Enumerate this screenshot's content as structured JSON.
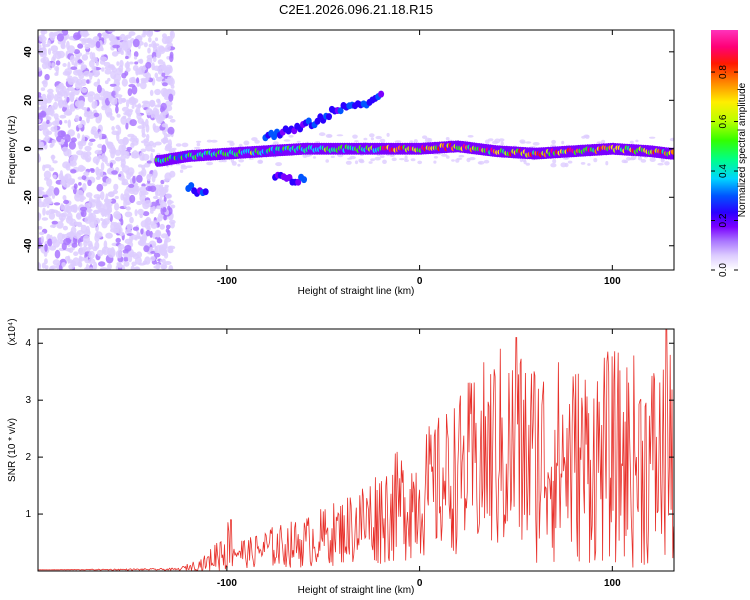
{
  "title": "C2E1.2026.096.21.18.R15",
  "colorbar": {
    "label": "Normalized spectral amplitude",
    "ticks": [
      "0.0",
      "0.2",
      "0.4",
      "0.6",
      "0.8"
    ],
    "tick_values": [
      0.0,
      0.2,
      0.4,
      0.6,
      0.8
    ],
    "range": [
      0,
      0.97
    ],
    "colors": [
      "#ffffff",
      "#ddccff",
      "#aa77ff",
      "#7a00ff",
      "#2a00ff",
      "#0055ff",
      "#00d5ff",
      "#00ff88",
      "#33ff00",
      "#bbff00",
      "#ffee00",
      "#ff8800",
      "#ff1a00",
      "#ff0077",
      "#ff33bb"
    ]
  },
  "chart_data": [
    {
      "type": "heatmap",
      "name": "spectrogram",
      "xlabel": "Height of straight line (km)",
      "ylabel": "Frequency (Hz)",
      "xlim": [
        -198,
        132
      ],
      "ylim": [
        -50,
        49
      ],
      "xticks": [
        "-100",
        "0",
        "100"
      ],
      "xtick_values": [
        -100,
        0,
        100
      ],
      "yticks": [
        "40",
        "20",
        "0",
        "-20",
        "-40"
      ],
      "ytick_values": [
        40,
        20,
        0,
        -20,
        -40
      ],
      "main_band_center_hz": [
        [
          -135,
          -5
        ],
        [
          -120,
          -3
        ],
        [
          -100,
          -2
        ],
        [
          -80,
          -1
        ],
        [
          -60,
          0
        ],
        [
          -40,
          0
        ],
        [
          -20,
          0
        ],
        [
          0,
          0
        ],
        [
          20,
          1
        ],
        [
          40,
          -1
        ],
        [
          60,
          -2
        ],
        [
          80,
          -1
        ],
        [
          100,
          0
        ],
        [
          120,
          -1
        ],
        [
          130,
          -2
        ]
      ],
      "secondary_features": [
        {
          "description": "rising streak",
          "points": [
            [
              -80,
              5
            ],
            [
              -60,
              9
            ],
            [
              -45,
              15
            ],
            [
              -35,
              18
            ],
            [
              -25,
              20
            ],
            [
              -20,
              22
            ]
          ]
        },
        {
          "description": "falling streak",
          "points": [
            [
              -120,
              -16
            ],
            [
              -110,
              -18
            ]
          ]
        },
        {
          "description": "falling streak",
          "points": [
            [
              -75,
              -12
            ],
            [
              -60,
              -13
            ]
          ]
        }
      ],
      "noise_region_km": [
        -198,
        -128
      ]
    },
    {
      "type": "line",
      "name": "snr",
      "xlabel": "Height of straight line (km)",
      "ylabel": "SNR (10 * v/v)",
      "yscale_note": "(x10⁴)",
      "xlim": [
        -198,
        132
      ],
      "ylim": [
        0,
        4.25
      ],
      "xticks": [
        "-100",
        "0",
        "100"
      ],
      "xtick_values": [
        -100,
        0,
        100
      ],
      "yticks": [
        "4",
        "3",
        "2",
        "1"
      ],
      "ytick_values": [
        4,
        3,
        2,
        1
      ],
      "color": "#e8302a",
      "envelope": [
        {
          "x": -198,
          "mean": 0.02,
          "amp": 0.0
        },
        {
          "x": -125,
          "mean": 0.03,
          "amp": 0.02
        },
        {
          "x": -110,
          "mean": 0.15,
          "amp": 0.15
        },
        {
          "x": -100,
          "mean": 0.45,
          "amp": 0.5
        },
        {
          "x": -90,
          "mean": 0.3,
          "amp": 0.25
        },
        {
          "x": -80,
          "mean": 0.4,
          "amp": 0.35
        },
        {
          "x": -60,
          "mean": 0.5,
          "amp": 0.45
        },
        {
          "x": -40,
          "mean": 0.7,
          "amp": 0.6
        },
        {
          "x": -20,
          "mean": 1.0,
          "amp": 0.9
        },
        {
          "x": 0,
          "mean": 1.3,
          "amp": 1.1
        },
        {
          "x": 20,
          "mean": 1.7,
          "amp": 1.4
        },
        {
          "x": 40,
          "mean": 2.1,
          "amp": 1.9
        },
        {
          "x": 60,
          "mean": 2.0,
          "amp": 1.9
        },
        {
          "x": 80,
          "mean": 1.9,
          "amp": 1.8
        },
        {
          "x": 100,
          "mean": 2.0,
          "amp": 1.9
        },
        {
          "x": 120,
          "mean": 1.9,
          "amp": 1.9
        },
        {
          "x": 132,
          "mean": 1.9,
          "amp": 1.9
        }
      ],
      "peaks": [
        {
          "x": -98,
          "y": 0.9
        },
        {
          "x": 50,
          "y": 4.1
        },
        {
          "x": 128,
          "y": 4.25
        }
      ]
    }
  ]
}
